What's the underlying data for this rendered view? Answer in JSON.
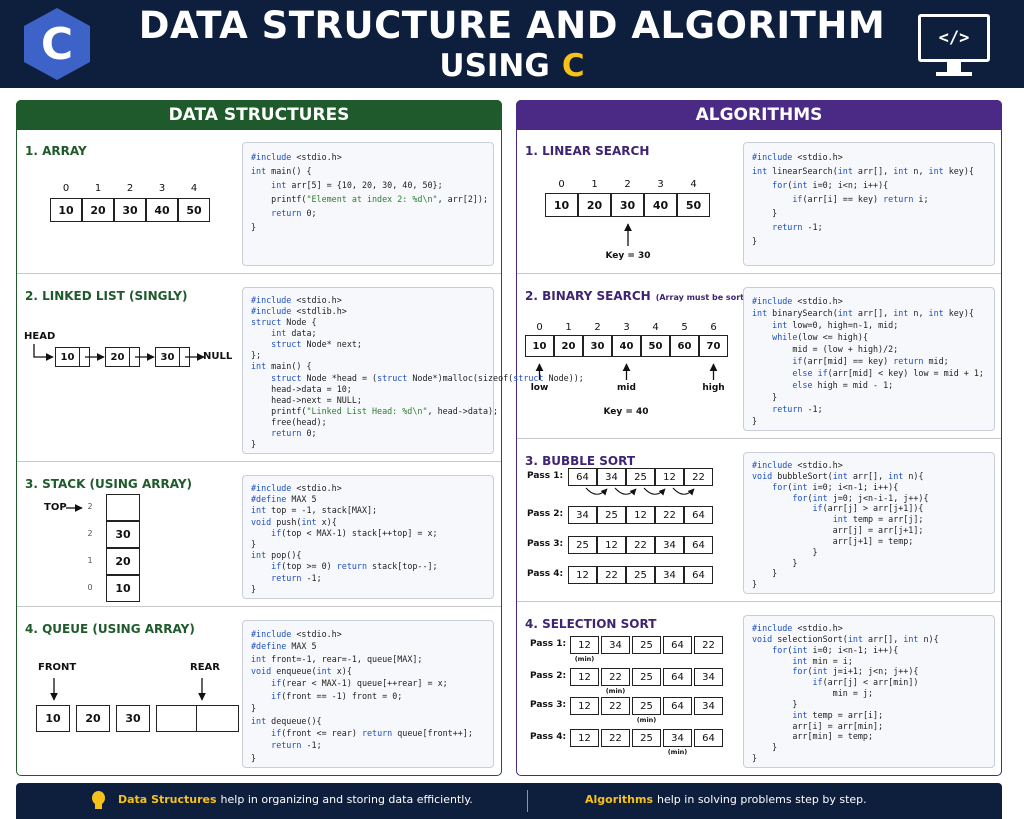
{
  "header": {
    "logo": "C",
    "title_line1": "DATA STRUCTURE AND ALGORITHM",
    "title_line2": "USING",
    "title_accent": "C",
    "icon": "</>"
  },
  "data_structures": {
    "heading": "DATA STRUCTURES",
    "sections": [
      {
        "title": "1. ARRAY",
        "indices": [
          "0",
          "1",
          "2",
          "3",
          "4"
        ],
        "cells": [
          "10",
          "20",
          "30",
          "40",
          "50"
        ],
        "code": [
          "#include <stdio.h>",
          "int main() {",
          "    int arr[5] = {10, 20, 30, 40, 50};",
          "    printf(\"Element at index 2: %d\\n\", arr[2]);",
          "    return 0;",
          "}"
        ]
      },
      {
        "title": "2. LINKED LIST (SINGLY)",
        "head": "HEAD",
        "nodes": [
          "10",
          "20",
          "30"
        ],
        "null": "NULL",
        "code": [
          "#include <stdio.h>",
          "#include <stdlib.h>",
          "struct Node {",
          "    int data;",
          "    struct Node* next;",
          "};",
          "int main() {",
          "    struct Node *head = (struct Node*)malloc(sizeof(struct Node));",
          "    head->data = 10;",
          "    head->next = NULL;",
          "    printf(\"Linked List Head: %d\\n\", head->data);",
          "    free(head);",
          "    return 0;",
          "}"
        ]
      },
      {
        "title": "3. STACK (USING ARRAY)",
        "top": "TOP",
        "rows": [
          {
            "index": "2"
          },
          {
            "index": "2",
            "value": "30"
          },
          {
            "index": "1",
            "value": "20"
          },
          {
            "index": "0",
            "value": "10"
          }
        ],
        "code": [
          "#include <stdio.h>",
          "#define MAX 5",
          "int top = -1, stack[MAX];",
          "void push(int x){",
          "    if(top < MAX-1) stack[++top] = x;",
          "}",
          "int pop(){",
          "    if(top >= 0) return stack[top--];",
          "    return -1;",
          "}"
        ]
      },
      {
        "title": "4. QUEUE (USING ARRAY)",
        "front": "FRONT",
        "rear": "REAR",
        "cells": [
          "10",
          "20",
          "30"
        ],
        "code": [
          "#include <stdio.h>",
          "#define MAX 5",
          "int front=-1, rear=-1, queue[MAX];",
          "void enqueue(int x){",
          "    if(rear < MAX-1) queue[++rear] = x;",
          "    if(front == -1) front = 0;",
          "}",
          "int dequeue(){",
          "    if(front <= rear) return queue[front++];",
          "    return -1;",
          "}"
        ]
      }
    ]
  },
  "algorithms": {
    "heading": "ALGORITHMS",
    "sections": [
      {
        "title": "1. LINEAR SEARCH",
        "indices": [
          "0",
          "1",
          "2",
          "3",
          "4"
        ],
        "cells": [
          "10",
          "20",
          "30",
          "40",
          "50"
        ],
        "key": "Key = 30",
        "code": [
          "#include <stdio.h>",
          "int linearSearch(int arr[], int n, int key){",
          "    for(int i=0; i<n; i++){",
          "        if(arr[i] == key) return i;",
          "    }",
          "    return -1;",
          "}"
        ]
      },
      {
        "title": "2. BINARY SEARCH",
        "note": "(Array must be sorted)",
        "indices": [
          "0",
          "1",
          "2",
          "3",
          "4",
          "5",
          "6"
        ],
        "cells": [
          "10",
          "20",
          "30",
          "40",
          "50",
          "60",
          "70"
        ],
        "pointers": [
          "low",
          "mid",
          "high"
        ],
        "key": "Key = 40",
        "code": [
          "#include <stdio.h>",
          "int binarySearch(int arr[], int n, int key){",
          "    int low=0, high=n-1, mid;",
          "    while(low <= high){",
          "        mid = (low + high)/2;",
          "        if(arr[mid] == key) return mid;",
          "        else if(arr[mid] < key) low = mid + 1;",
          "        else high = mid - 1;",
          "    }",
          "    return -1;",
          "}"
        ]
      },
      {
        "title": "3. BUBBLE SORT",
        "passes": [
          {
            "label": "Pass 1:",
            "values": [
              "64",
              "34",
              "25",
              "12",
              "22"
            ]
          },
          {
            "label": "Pass 2:",
            "values": [
              "34",
              "25",
              "12",
              "22",
              "64"
            ]
          },
          {
            "label": "Pass 3:",
            "values": [
              "25",
              "12",
              "22",
              "34",
              "64"
            ]
          },
          {
            "label": "Pass 4:",
            "values": [
              "12",
              "22",
              "25",
              "34",
              "64"
            ]
          }
        ],
        "code": [
          "#include <stdio.h>",
          "void bubbleSort(int arr[], int n){",
          "    for(int i=0; i<n-1; i++){",
          "        for(int j=0; j<n-i-1, j++){",
          "            if(arr[j] > arr[j+1]){",
          "                int temp = arr[j];",
          "                arr[j] = arr[j+1];",
          "                arr[j+1] = temp;",
          "            }",
          "        }",
          "    }",
          "}"
        ]
      },
      {
        "title": "4. SELECTION SORT",
        "passes": [
          {
            "label": "Pass 1:",
            "values": [
              "12",
              "34",
              "25",
              "64",
              "22"
            ],
            "note": "(min)"
          },
          {
            "label": "Pass 2:",
            "values": [
              "12",
              "22",
              "25",
              "64",
              "34"
            ],
            "note": "(min)"
          },
          {
            "label": "Pass 3:",
            "values": [
              "12",
              "22",
              "25",
              "64",
              "34"
            ],
            "note": "(min)"
          },
          {
            "label": "Pass 4:",
            "values": [
              "12",
              "22",
              "25",
              "34",
              "64"
            ],
            "note": "(min)"
          }
        ],
        "code": [
          "#include <stdio.h>",
          "void selectionSort(int arr[], int n){",
          "    for(int i=0; i<n-1; i++){",
          "        int min = i;",
          "        for(int j=i+1; j<n; j++){",
          "            if(arr[j] < arr[min])",
          "                min = j;",
          "        }",
          "        int temp = arr[i];",
          "        arr[i] = arr[min];",
          "        arr[min] = temp;",
          "    }",
          "}"
        ]
      }
    ]
  },
  "footer": {
    "left_bold": "Data Structures",
    "left_text": "help in organizing and storing data efficiently.",
    "right_bold": "Algorithms",
    "right_text": "help in solving problems step by step."
  }
}
